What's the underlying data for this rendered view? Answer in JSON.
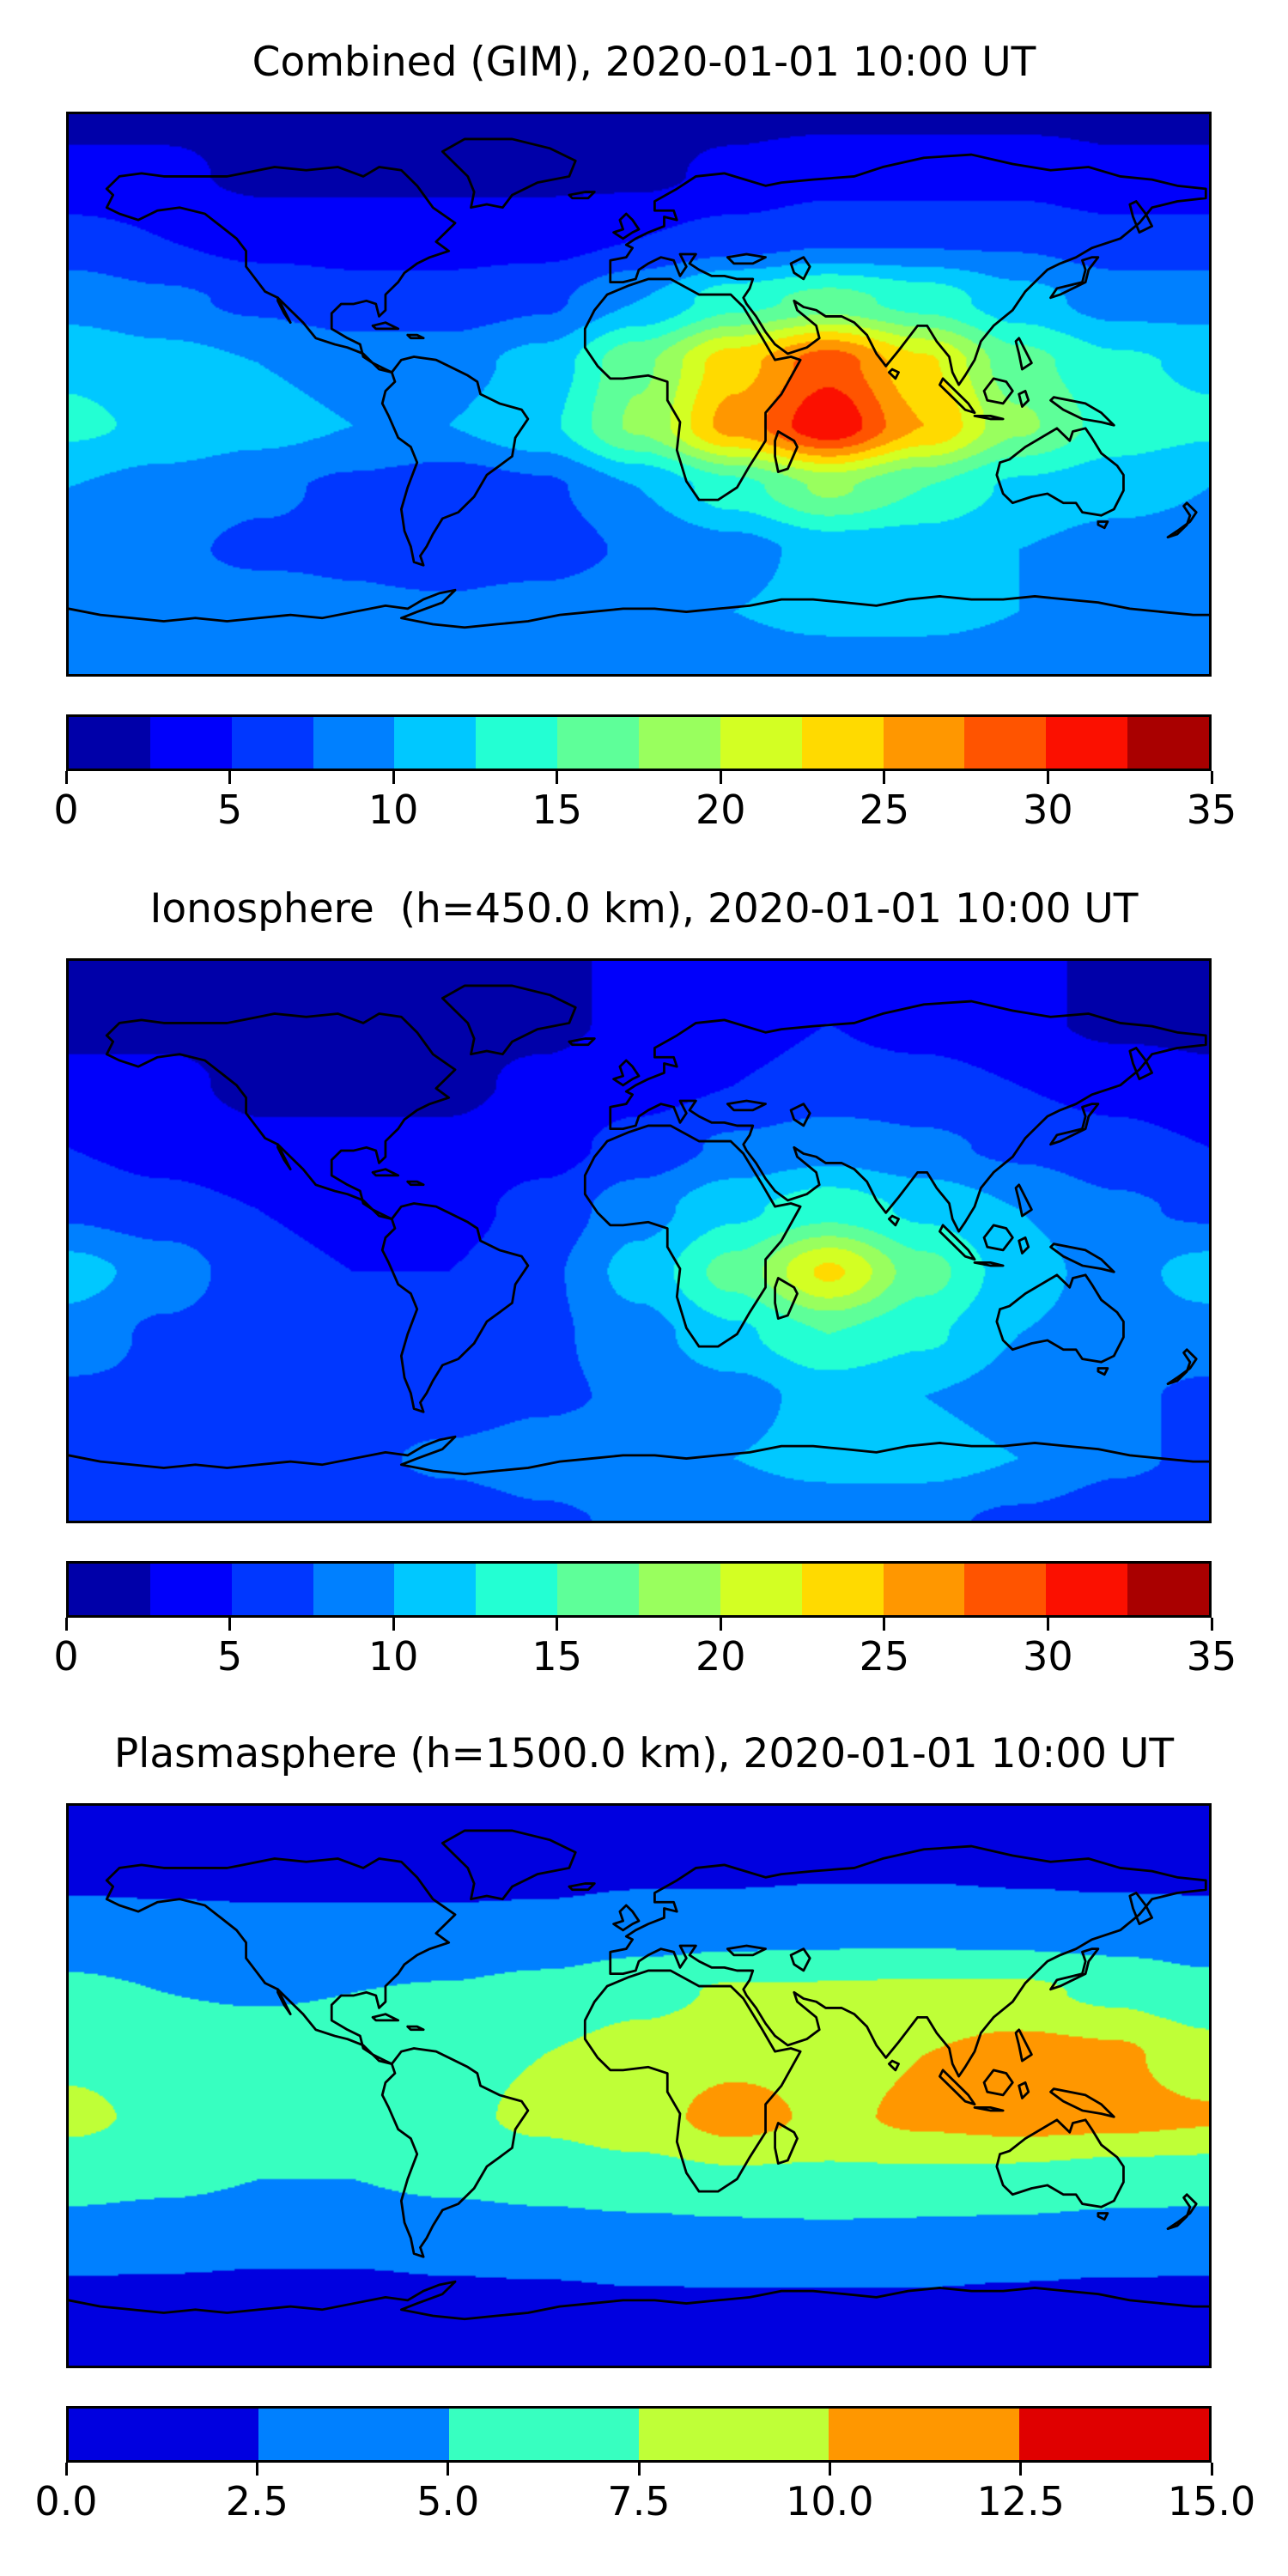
{
  "figure": {
    "background": "#ffffff"
  },
  "chart_data": [
    {
      "type": "heatmap",
      "title": "Combined (GIM), 2020-01-01 10:00 UT",
      "projection": "equirectangular",
      "xlabel": "",
      "ylabel": "",
      "lon": [
        -180,
        -150,
        -120,
        -90,
        -60,
        -30,
        0,
        30,
        60,
        90,
        120,
        150,
        180
      ],
      "lat": [
        90,
        70,
        50,
        30,
        10,
        -10,
        -30,
        -50,
        -70,
        -90
      ],
      "values": [
        [
          2,
          2,
          2,
          2,
          2,
          2,
          2,
          2,
          2,
          2,
          2,
          2,
          2
        ],
        [
          3,
          3,
          2,
          2,
          2,
          2,
          2,
          3,
          4,
          4,
          4,
          3,
          3
        ],
        [
          6,
          5,
          4,
          4,
          4,
          4,
          5,
          6,
          7,
          7,
          7,
          6,
          6
        ],
        [
          9,
          8,
          7,
          6,
          6,
          7,
          10,
          14,
          16,
          14,
          11,
          9,
          9
        ],
        [
          12,
          11,
          10,
          9,
          9,
          11,
          17,
          24,
          29,
          23,
          16,
          13,
          12
        ],
        [
          13,
          12,
          11,
          10,
          10,
          12,
          18,
          26,
          32,
          25,
          18,
          14,
          13
        ],
        [
          10,
          9,
          8,
          7,
          6,
          7,
          10,
          14,
          18,
          15,
          12,
          11,
          10
        ],
        [
          9,
          8,
          7,
          7,
          6,
          6,
          8,
          9,
          11,
          11,
          10,
          9,
          9
        ],
        [
          9,
          9,
          9,
          8,
          8,
          9,
          10,
          10,
          11,
          11,
          10,
          10,
          9
        ],
        [
          8,
          8,
          8,
          8,
          8,
          8,
          8,
          8,
          8,
          8,
          8,
          8,
          8
        ]
      ],
      "vmin": 0,
      "vmax": 35,
      "level_step": 2.5,
      "colors": [
        "#0000a9",
        "#0000fb",
        "#0037ff",
        "#0080ff",
        "#00c8ff",
        "#23ffd3",
        "#5eff99",
        "#99ff5e",
        "#d3ff23",
        "#ffda00",
        "#ff9700",
        "#ff5400",
        "#fb1000",
        "#a90000"
      ],
      "colorbar_ticks": [
        {
          "value": 0,
          "label": "0"
        },
        {
          "value": 5,
          "label": "5"
        },
        {
          "value": 10,
          "label": "10"
        },
        {
          "value": 15,
          "label": "15"
        },
        {
          "value": 20,
          "label": "20"
        },
        {
          "value": 25,
          "label": "25"
        },
        {
          "value": 30,
          "label": "30"
        },
        {
          "value": 35,
          "label": "35"
        }
      ]
    },
    {
      "type": "heatmap",
      "title": "Ionosphere  (h=450.0 km), 2020-01-01 10:00 UT",
      "projection": "equirectangular",
      "xlabel": "",
      "ylabel": "",
      "lon": [
        -180,
        -150,
        -120,
        -90,
        -60,
        -30,
        0,
        30,
        60,
        90,
        120,
        150,
        180
      ],
      "lat": [
        90,
        70,
        50,
        30,
        10,
        -10,
        -30,
        -50,
        -70,
        -90
      ],
      "values": [
        [
          2,
          2,
          2,
          2,
          2,
          2,
          3,
          3,
          3,
          3,
          3,
          2,
          2
        ],
        [
          2,
          2,
          2,
          2,
          2,
          2,
          3,
          4,
          5,
          4,
          3,
          2,
          2
        ],
        [
          3,
          3,
          2,
          2,
          2,
          3,
          4,
          5,
          6,
          6,
          5,
          4,
          3
        ],
        [
          5,
          4,
          3,
          3,
          3,
          4,
          6,
          8,
          9,
          8,
          7,
          6,
          5
        ],
        [
          7,
          6,
          5,
          4,
          4,
          6,
          9,
          12,
          14,
          12,
          10,
          8,
          7
        ],
        [
          11,
          9,
          6,
          5,
          5,
          7,
          11,
          16,
          23,
          16,
          11,
          9,
          11
        ],
        [
          9,
          7,
          6,
          6,
          6,
          7,
          9,
          12,
          15,
          13,
          10,
          9,
          9
        ],
        [
          7,
          7,
          6,
          6,
          6,
          7,
          8,
          9,
          11,
          10,
          9,
          8,
          7
        ],
        [
          6,
          7,
          7,
          7,
          8,
          9,
          10,
          10,
          11,
          11,
          10,
          8,
          7
        ],
        [
          5,
          5,
          5,
          5,
          6,
          7,
          8,
          8,
          8,
          8,
          7,
          6,
          5
        ]
      ],
      "vmin": 0,
      "vmax": 35,
      "level_step": 2.5,
      "colors": [
        "#0000a9",
        "#0000fb",
        "#0037ff",
        "#0080ff",
        "#00c8ff",
        "#23ffd3",
        "#5eff99",
        "#99ff5e",
        "#d3ff23",
        "#ffda00",
        "#ff9700",
        "#ff5400",
        "#fb1000",
        "#a90000"
      ],
      "colorbar_ticks": [
        {
          "value": 0,
          "label": "0"
        },
        {
          "value": 5,
          "label": "5"
        },
        {
          "value": 10,
          "label": "10"
        },
        {
          "value": 15,
          "label": "15"
        },
        {
          "value": 20,
          "label": "20"
        },
        {
          "value": 25,
          "label": "25"
        },
        {
          "value": 30,
          "label": "30"
        },
        {
          "value": 35,
          "label": "35"
        }
      ]
    },
    {
      "type": "heatmap",
      "title": "Plasmasphere (h=1500.0 km), 2020-01-01 10:00 UT",
      "projection": "equirectangular",
      "xlabel": "",
      "ylabel": "",
      "lon": [
        -180,
        -150,
        -120,
        -90,
        -60,
        -30,
        0,
        30,
        60,
        90,
        120,
        150,
        180
      ],
      "lat": [
        90,
        70,
        50,
        30,
        10,
        -10,
        -30,
        -50,
        -70,
        -90
      ],
      "values": [
        [
          1.5,
          1.5,
          1.5,
          1.5,
          1.5,
          1.5,
          1.5,
          1.5,
          1.5,
          1.5,
          1.5,
          1.5,
          1.5
        ],
        [
          1.8,
          1.8,
          1.8,
          1.8,
          1.8,
          1.8,
          2,
          2,
          2.2,
          2.2,
          2,
          1.8,
          1.8
        ],
        [
          3.5,
          3.2,
          3,
          3,
          3,
          3.2,
          3.8,
          4,
          4.2,
          4.2,
          4,
          3.8,
          3.5
        ],
        [
          5.5,
          5,
          4.8,
          5,
          5.2,
          5.8,
          6.8,
          7.8,
          7.8,
          8,
          8,
          7,
          5.8
        ],
        [
          7,
          6.5,
          6.3,
          6.5,
          6.8,
          7.5,
          8.5,
          9.3,
          9,
          10,
          11,
          10.5,
          8.5
        ],
        [
          8,
          7,
          6.5,
          6.5,
          7,
          8,
          9,
          11,
          9.5,
          10.5,
          11,
          10.8,
          10.3
        ],
        [
          6,
          5.5,
          5,
          5,
          5.5,
          6,
          6.5,
          7,
          7,
          7,
          6.8,
          6.2,
          6
        ],
        [
          3.5,
          3.3,
          3,
          3,
          3.2,
          3.5,
          3.8,
          4,
          4.2,
          4,
          3.8,
          3.6,
          3.5
        ],
        [
          1.8,
          1.8,
          1.8,
          1.8,
          2,
          2,
          2.2,
          2.2,
          2.2,
          2.2,
          2,
          1.8,
          1.8
        ],
        [
          1.5,
          1.5,
          1.5,
          1.5,
          1.5,
          1.5,
          1.5,
          1.5,
          1.5,
          1.5,
          1.5,
          1.5,
          1.5
        ]
      ],
      "vmin": 0,
      "vmax": 15,
      "level_step": 2.5,
      "colors": [
        "#0000e0",
        "#0080ff",
        "#37ffc0",
        "#bfff37",
        "#ff9700",
        "#e00000"
      ],
      "colorbar_ticks": [
        {
          "value": 0,
          "label": "0.0"
        },
        {
          "value": 2.5,
          "label": "2.5"
        },
        {
          "value": 5,
          "label": "5.0"
        },
        {
          "value": 7.5,
          "label": "7.5"
        },
        {
          "value": 10,
          "label": "10.0"
        },
        {
          "value": 12.5,
          "label": "12.5"
        },
        {
          "value": 15,
          "label": "15.0"
        }
      ]
    }
  ]
}
